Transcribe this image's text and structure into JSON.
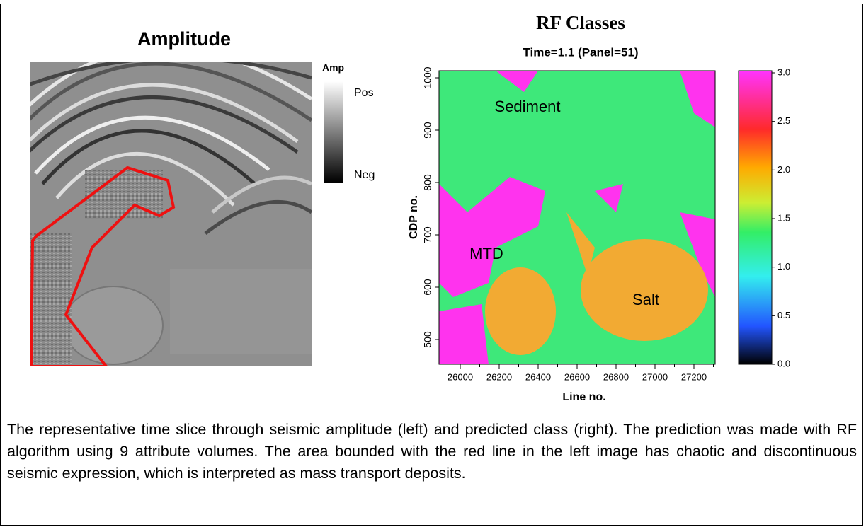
{
  "left_panel": {
    "title": "Amplitude",
    "legend": {
      "title": "Amp",
      "top": "Pos",
      "bottom": "Neg"
    }
  },
  "right_panel": {
    "title": "RF Classes",
    "subtitle": "Time=1.1 (Panel=51)",
    "y_label": "CDP no.",
    "x_label": "Line no.",
    "y_ticks": [
      "1000",
      "900",
      "800",
      "700",
      "600",
      "500"
    ],
    "x_ticks": [
      "26000",
      "26200",
      "26400",
      "26600",
      "26800",
      "27000",
      "27200"
    ],
    "colorbar_ticks": [
      "3.0",
      "2.5",
      "2.0",
      "1.5",
      "1.0",
      "0.5",
      "0.0"
    ],
    "annotations": [
      "Sediment",
      "MTD",
      "Salt"
    ]
  },
  "caption": "The representative time slice through seismic amplitude (left) and predicted class (right). The prediction was made with RF algorithm using 9 attribute volumes. The area bounded with the red line in the left image has chaotic and discontinuous seismic expression, which is interpreted as mass transport deposits."
}
